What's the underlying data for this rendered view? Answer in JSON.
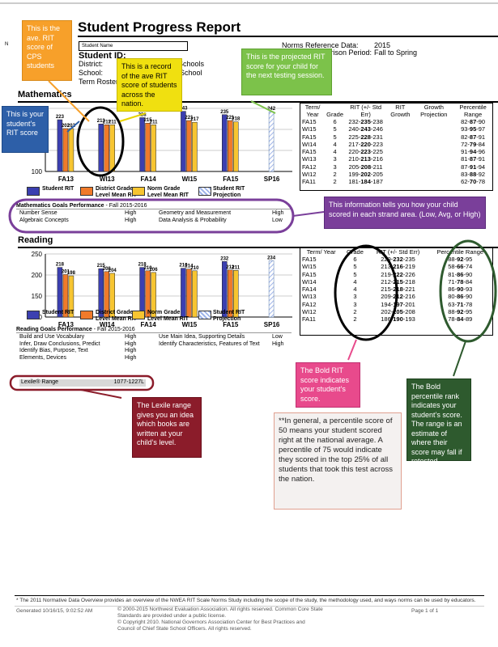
{
  "report": {
    "title": "Student Progress Report",
    "student_name_box": "Student Name",
    "student_id_label": "Student ID:",
    "district_label": "District:",
    "district_value": "Columbus Public Schools",
    "school_label": "School:",
    "school_value": "Columbus Middle School",
    "roster_label": "Term Rostered:",
    "roster_value": "2015-2016",
    "norms_label": "Norms Reference Data:",
    "norms_value": "2015",
    "growth_label": "Growth Comparison Period:",
    "growth_value": "Fall to Spring",
    "left_no": "N"
  },
  "math": {
    "title": "Mathematics",
    "table": {
      "headers": [
        "Term/ Year",
        "Grade",
        "RIT (+/- Std Err)",
        "RIT Growth",
        "Growth Projection",
        "Percentile Range"
      ],
      "rows": [
        [
          "FA15",
          "6",
          "232-235-238",
          "",
          "",
          "82-87-90"
        ],
        [
          "WI15",
          "5",
          "240-243-246",
          "",
          "",
          "93-95-97"
        ],
        [
          "FA15",
          "5",
          "225-228-231",
          "",
          "",
          "82-87-91"
        ],
        [
          "WI14",
          "4",
          "217-220-223",
          "",
          "",
          "72-79-84"
        ],
        [
          "FA15",
          "4",
          "220-223-225",
          "",
          "",
          "91-94-96"
        ],
        [
          "WI13",
          "3",
          "210-213-216",
          "",
          "",
          "81-87-91"
        ],
        [
          "FA12",
          "3",
          "205-208-211",
          "",
          "",
          "87-91-94"
        ],
        [
          "WI12",
          "2",
          "199-202-205",
          "",
          "",
          "83-88-92"
        ],
        [
          "FA11",
          "2",
          "181-184-187",
          "",
          "",
          "62-70-78"
        ]
      ]
    },
    "goals_title": "Mathematics Goals Performance",
    "goals_period": " - Fall 2015-2016",
    "goals": [
      [
        "Number Sense",
        "High",
        "Geometry and Measurement",
        "High"
      ],
      [
        "Algebraic Concepts",
        "High",
        "Data Analysis & Probability",
        "Low"
      ]
    ]
  },
  "reading": {
    "title": "Reading",
    "table": {
      "headers": [
        "Term/ Year",
        "Grade",
        "RIT (+/- Std Err)",
        "Percentile Range"
      ],
      "rows": [
        [
          "FA15",
          "6",
          "229-232-235",
          "88-92-95"
        ],
        [
          "WI15",
          "5",
          "213-216-219",
          "58-66-74"
        ],
        [
          "FA15",
          "5",
          "219-222-226",
          "81-86-90"
        ],
        [
          "WI14",
          "4",
          "212-215-218",
          "71-78-84"
        ],
        [
          "FA14",
          "4",
          "215-218-221",
          "86-90-93"
        ],
        [
          "WI13",
          "3",
          "209-212-216",
          "80-86-90"
        ],
        [
          "FA12",
          "3",
          "194-197-201",
          "63-71-78"
        ],
        [
          "WI12",
          "2",
          "202-205-208",
          "88-92-95"
        ],
        [
          "FA11",
          "2",
          "186-190-193",
          "78-84-89"
        ]
      ]
    },
    "goals_title": "Reading Goals Performance",
    "goals_period": " - Fall 2015-2016",
    "goals": [
      [
        "Build and Use Vocabulary",
        "High",
        "Use Main Idea, Supporting Details",
        "Low"
      ],
      [
        "Infer, Draw Conclusions, Predict",
        "High",
        "Identify Characteristics, Features of Text",
        "High"
      ],
      [
        "Identify Bias, Purpose, Text",
        "High",
        "",
        ""
      ],
      [
        "Elements, Devices",
        "High",
        "",
        ""
      ]
    ],
    "lexile_label": "Lexile® Range",
    "lexile_value": "1077-1227L"
  },
  "legend": {
    "student": "Student RIT",
    "district": "District Grade Level Mean RIT",
    "norm": "Norm Grade Level Mean RIT",
    "projection": "Student RIT Projection"
  },
  "colors": {
    "student": "#3b3fb0",
    "district": "#f07a2a",
    "norm": "#f7c531",
    "projection": "#9fb4e8"
  },
  "chart_data": [
    {
      "type": "bar",
      "title": "Mathematics",
      "categories": [
        "FA13",
        "WI13",
        "FA14",
        "WI15",
        "FA15",
        "SP16"
      ],
      "ylim": [
        100,
        250
      ],
      "yticks": [
        100,
        150,
        200,
        250
      ],
      "series": [
        {
          "name": "Student RIT",
          "values": [
            223,
            213,
            228,
            243,
            235,
            null
          ]
        },
        {
          "name": "District Grade Level Mean RIT",
          "values": [
            202,
            211,
            215,
            221,
            221,
            null
          ]
        },
        {
          "name": "Norm Grade Level Mean RIT",
          "values": [
            202,
            211,
            211,
            217,
            218,
            null
          ]
        },
        {
          "name": "Student RIT Projection",
          "values": [
            null,
            null,
            null,
            null,
            null,
            242
          ]
        }
      ]
    },
    {
      "type": "bar",
      "title": "Reading",
      "categories": [
        "FA13",
        "WI14",
        "FA14",
        "WI15",
        "FA15",
        "SP16"
      ],
      "ylim": [
        100,
        250
      ],
      "yticks": [
        100,
        150,
        200,
        250
      ],
      "series": [
        {
          "name": "Student RIT",
          "values": [
            218,
            215,
            218,
            216,
            232,
            null
          ]
        },
        {
          "name": "District Grade Level Mean RIT",
          "values": [
            201,
            208,
            210,
            214,
            212,
            null
          ]
        },
        {
          "name": "Norm Grade Level Mean RIT",
          "values": [
            198,
            204,
            206,
            210,
            211,
            null
          ]
        },
        {
          "name": "Student RIT Projection",
          "values": [
            null,
            null,
            null,
            null,
            null,
            234
          ]
        }
      ]
    }
  ],
  "callouts": {
    "ave": "This is the ave. RIT score of CPS students",
    "record": "This is a record of the ave RIT score of students across the nation.",
    "projected": "This is the projected RIT score for your child for the next testing session.",
    "your": "This is your student’s RIT score",
    "strand": "This information tells you how your child scored in each strand area.  (Low, Avg, or High)",
    "bold_rit": "The Bold RIT score indicates your student’s score.",
    "lexile": "The Lexile range gives you an idea which books are written at your child’s level.",
    "general": "**In general, a percentile score of 50 means your student scored right at the national average.  A percentile of 75 would indicate they scored in the top 25% of all students that took this test across the nation.",
    "bold_pct": "The Bold percentile rank indicates your student’s score. The range is an estimate of where their score may fall if retested."
  },
  "footer": {
    "note": "* The 2011 Normative Data Overview provides an overview of the NWEA RIT Scale Norms Study including the scope of the study, the methodology used, and ways norms can be used by educators.",
    "generated": "Generated    10/16/15, 9:02:52 AM",
    "copy1": "© 2000-2015 Northwest Evaluation Association. All rights reserved. Common Core State Standards are provided under a public license.",
    "copy2": "© Copyright 2010. National Governors Association Center for Best Practices and Council of Chief State School Officers. All rights reserved.",
    "page": "Page      1      of      1"
  }
}
